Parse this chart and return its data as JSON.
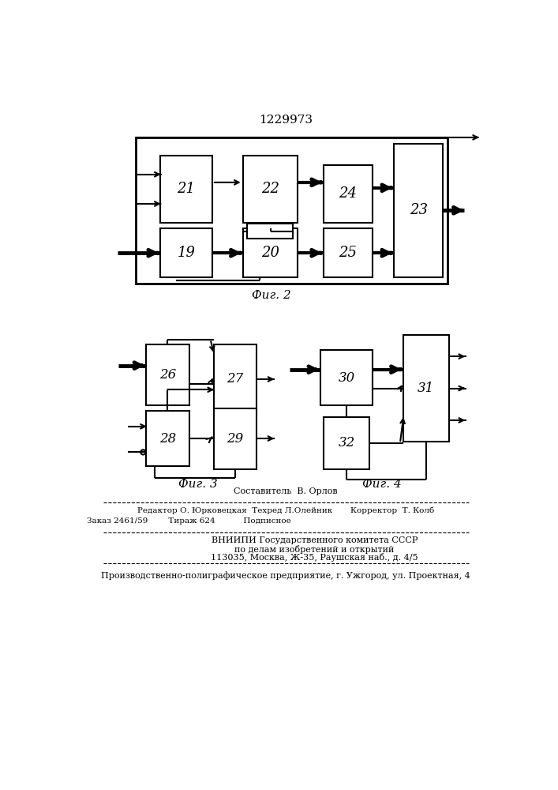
{
  "title": "1229973",
  "fig2_label": "Фиг. 2",
  "fig3_label": "Фиг. 3",
  "fig4_label": "Фиг. 4",
  "bg_color": "#ffffff",
  "line_color": "#000000",
  "footer_lines": [
    "Составитель  В. Орлов",
    "Редактор О. Юрковецкая  Техред Л.Олейник       Корректор  Т. Колб",
    "Заказ 2461/59        Тираж 624           Подписное",
    "ВНИИПИ Государственного комитета СССР",
    "по делам изобретений и открытий",
    "113035, Москва, Ж-35, Раушская наб., д. 4/5",
    "Производственно-полиграфическое предприятие, г. Ужгород, ул. Проектная, 4"
  ]
}
